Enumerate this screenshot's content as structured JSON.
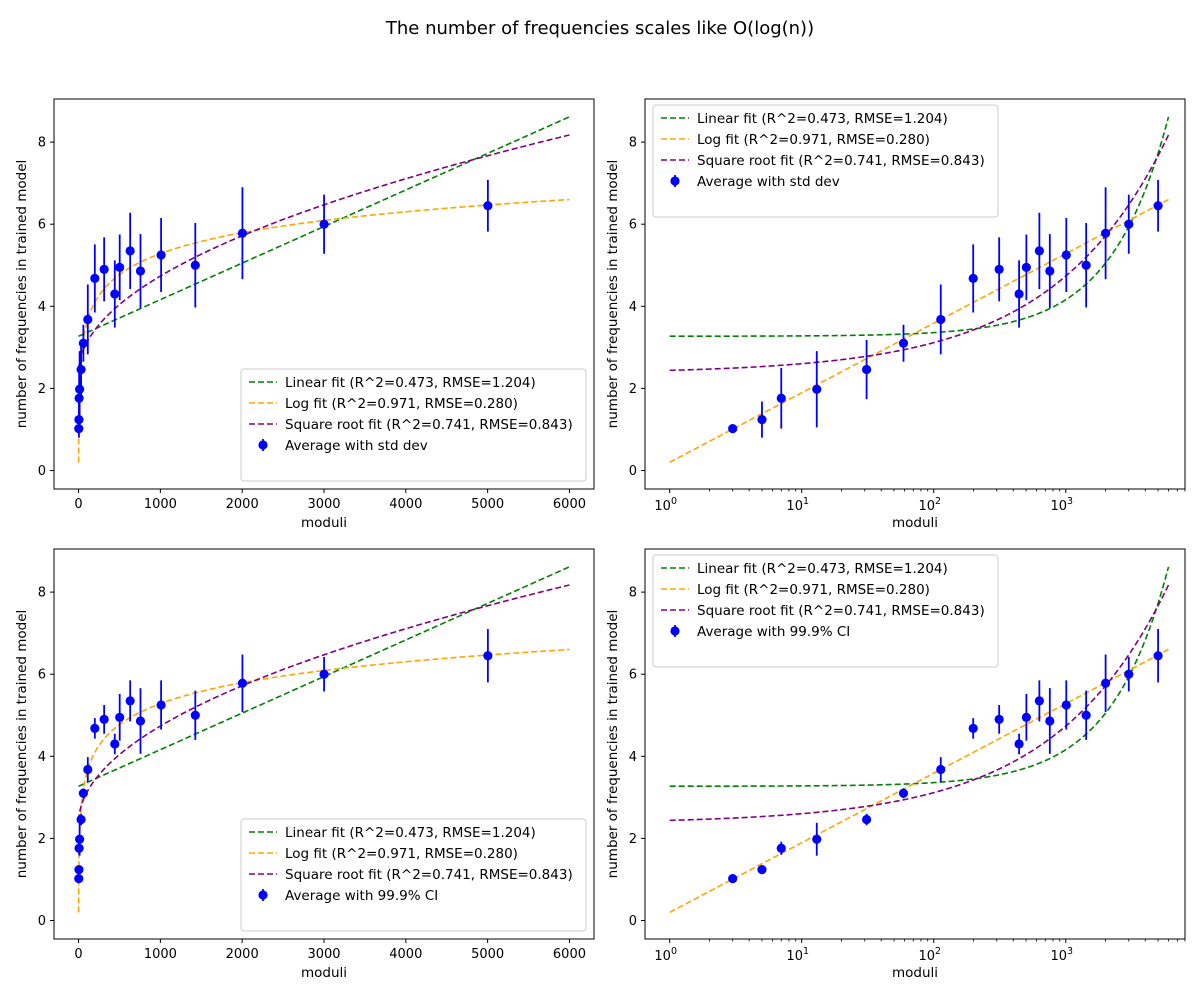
{
  "suptitle": "The number of frequencies scales like O(log(n))",
  "fits": {
    "linear": {
      "intercept": 3.2706,
      "slope": 0.00089094
    },
    "log": {
      "a": 0.2,
      "b": 0.7358
    },
    "sqrt": {
      "a": 2.365,
      "b": 0.07499
    }
  },
  "chart_data": [
    {
      "type": "scatter",
      "x_scale": "linear",
      "xlim": [
        -300,
        6300
      ],
      "ylim": [
        -0.45,
        9.05
      ],
      "xticks": [
        0,
        1000,
        2000,
        3000,
        4000,
        5000,
        6000
      ],
      "yticks": [
        0,
        2,
        4,
        6,
        8
      ],
      "xlabel": "moduli",
      "ylabel": "number of frequencies in trained model",
      "legend_position": "lower right",
      "series": [
        {
          "name": "Linear fit (R^2=0.473, RMSE=1.204)",
          "kind": "fit",
          "fit": "linear",
          "color": "#008000"
        },
        {
          "name": "Log fit (R^2=0.971, RMSE=0.280)",
          "kind": "fit",
          "fit": "log",
          "color": "#ffa500"
        },
        {
          "name": "Square root fit (R^2=0.741, RMSE=0.843)",
          "kind": "fit",
          "fit": "sqrt",
          "color": "#800080"
        },
        {
          "name": "Average with std dev",
          "kind": "errorbar",
          "color": "#0000ff",
          "x": [
            3,
            5,
            7,
            13,
            31,
            59,
            113,
            199,
            313,
            443,
            503,
            631,
            757,
            1009,
            1427,
            2003,
            3001,
            5003
          ],
          "y": [
            1.02,
            1.24,
            1.76,
            1.98,
            2.46,
            3.1,
            3.68,
            4.68,
            4.9,
            4.3,
            4.95,
            5.35,
            4.86,
            5.25,
            5.0,
            5.78,
            6.0,
            6.45
          ],
          "yerr": [
            0.08,
            0.44,
            0.74,
            0.93,
            0.72,
            0.45,
            0.85,
            0.83,
            0.78,
            0.82,
            0.8,
            0.93,
            0.9,
            0.9,
            1.03,
            1.12,
            0.72,
            0.63
          ]
        }
      ]
    },
    {
      "type": "scatter",
      "x_scale": "log",
      "xlim": [
        0.65,
        8000
      ],
      "ylim": [
        -0.45,
        9.05
      ],
      "xticks": [
        1,
        10,
        100,
        1000
      ],
      "xticklabels": [
        "10^0",
        "10^1",
        "10^2",
        "10^3"
      ],
      "yticks": [
        0,
        2,
        4,
        6,
        8
      ],
      "xlabel": "moduli",
      "ylabel": "number of frequencies in trained model",
      "legend_position": "upper left",
      "series": [
        {
          "name": "Linear fit (R^2=0.473, RMSE=1.204)",
          "kind": "fit",
          "fit": "linear",
          "color": "#008000"
        },
        {
          "name": "Log fit (R^2=0.971, RMSE=0.280)",
          "kind": "fit",
          "fit": "log",
          "color": "#ffa500"
        },
        {
          "name": "Square root fit (R^2=0.741, RMSE=0.843)",
          "kind": "fit",
          "fit": "sqrt",
          "color": "#800080"
        },
        {
          "name": "Average with std dev",
          "kind": "errorbar",
          "color": "#0000ff",
          "x": [
            3,
            5,
            7,
            13,
            31,
            59,
            113,
            199,
            313,
            443,
            503,
            631,
            757,
            1009,
            1427,
            2003,
            3001,
            5003
          ],
          "y": [
            1.02,
            1.24,
            1.76,
            1.98,
            2.46,
            3.1,
            3.68,
            4.68,
            4.9,
            4.3,
            4.95,
            5.35,
            4.86,
            5.25,
            5.0,
            5.78,
            6.0,
            6.45
          ],
          "yerr": [
            0.08,
            0.44,
            0.74,
            0.93,
            0.72,
            0.45,
            0.85,
            0.83,
            0.78,
            0.82,
            0.8,
            0.93,
            0.9,
            0.9,
            1.03,
            1.12,
            0.72,
            0.63
          ]
        }
      ]
    },
    {
      "type": "scatter",
      "x_scale": "linear",
      "xlim": [
        -300,
        6300
      ],
      "ylim": [
        -0.45,
        9.05
      ],
      "xticks": [
        0,
        1000,
        2000,
        3000,
        4000,
        5000,
        6000
      ],
      "yticks": [
        0,
        2,
        4,
        6,
        8
      ],
      "xlabel": "moduli",
      "ylabel": "number of frequencies in trained model",
      "legend_position": "lower right",
      "series": [
        {
          "name": "Linear fit (R^2=0.473, RMSE=1.204)",
          "kind": "fit",
          "fit": "linear",
          "color": "#008000"
        },
        {
          "name": "Log fit (R^2=0.971, RMSE=0.280)",
          "kind": "fit",
          "fit": "log",
          "color": "#ffa500"
        },
        {
          "name": "Square root fit (R^2=0.741, RMSE=0.843)",
          "kind": "fit",
          "fit": "sqrt",
          "color": "#800080"
        },
        {
          "name": "Average with 99.9% CI",
          "kind": "errorbar",
          "color": "#0000ff",
          "x": [
            3,
            5,
            7,
            13,
            31,
            59,
            113,
            199,
            313,
            443,
            503,
            631,
            757,
            1009,
            1427,
            2003,
            3001,
            5003
          ],
          "y": [
            1.02,
            1.24,
            1.76,
            1.98,
            2.46,
            3.1,
            3.68,
            4.68,
            4.9,
            4.3,
            4.95,
            5.35,
            4.86,
            5.25,
            5.0,
            5.78,
            6.0,
            6.45
          ],
          "yerr": [
            0.05,
            0.1,
            0.16,
            0.4,
            0.14,
            0.12,
            0.3,
            0.25,
            0.35,
            0.25,
            0.57,
            0.5,
            0.8,
            0.6,
            0.6,
            0.7,
            0.42,
            0.65
          ]
        }
      ]
    },
    {
      "type": "scatter",
      "x_scale": "log",
      "xlim": [
        0.65,
        8000
      ],
      "ylim": [
        -0.45,
        9.05
      ],
      "xticks": [
        1,
        10,
        100,
        1000
      ],
      "xticklabels": [
        "10^0",
        "10^1",
        "10^2",
        "10^3"
      ],
      "yticks": [
        0,
        2,
        4,
        6,
        8
      ],
      "xlabel": "moduli",
      "ylabel": "number of frequencies in trained model",
      "legend_position": "upper left",
      "series": [
        {
          "name": "Linear fit (R^2=0.473, RMSE=1.204)",
          "kind": "fit",
          "fit": "linear",
          "color": "#008000"
        },
        {
          "name": "Log fit (R^2=0.971, RMSE=0.280)",
          "kind": "fit",
          "fit": "log",
          "color": "#ffa500"
        },
        {
          "name": "Square root fit (R^2=0.741, RMSE=0.843)",
          "kind": "fit",
          "fit": "sqrt",
          "color": "#800080"
        },
        {
          "name": "Average with 99.9% CI",
          "kind": "errorbar",
          "color": "#0000ff",
          "x": [
            3,
            5,
            7,
            13,
            31,
            59,
            113,
            199,
            313,
            443,
            503,
            631,
            757,
            1009,
            1427,
            2003,
            3001,
            5003
          ],
          "y": [
            1.02,
            1.24,
            1.76,
            1.98,
            2.46,
            3.1,
            3.68,
            4.68,
            4.9,
            4.3,
            4.95,
            5.35,
            4.86,
            5.25,
            5.0,
            5.78,
            6.0,
            6.45
          ],
          "yerr": [
            0.05,
            0.1,
            0.16,
            0.4,
            0.14,
            0.12,
            0.3,
            0.25,
            0.35,
            0.25,
            0.57,
            0.5,
            0.8,
            0.6,
            0.6,
            0.7,
            0.42,
            0.65
          ]
        }
      ]
    }
  ]
}
